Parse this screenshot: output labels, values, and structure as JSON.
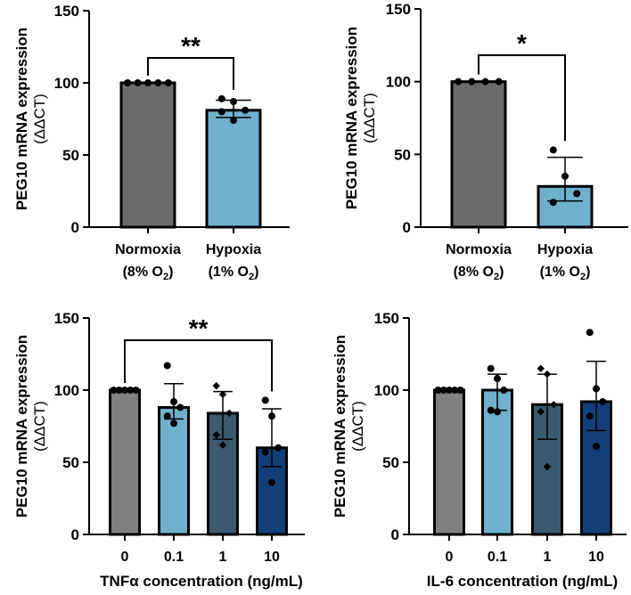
{
  "chart_data": [
    {
      "type": "bar",
      "ylabel": "PEG10 mRNA expression",
      "ylabel2": "(ΔΔCT)",
      "xlabel": "",
      "ylim": [
        0,
        150
      ],
      "yticks": [
        "0",
        "50",
        "100",
        "150"
      ],
      "categories": [
        [
          "Normoxia",
          "(8% O",
          "2",
          ")"
        ],
        [
          "Hypoxia",
          "(1% O",
          "2",
          ")"
        ]
      ],
      "means": [
        100,
        81
      ],
      "sd": [
        [
          100,
          100
        ],
        [
          76,
          88
        ]
      ],
      "points": [
        [
          100,
          100,
          100,
          100,
          100
        ],
        [
          89,
          87,
          81,
          80,
          74
        ]
      ],
      "colors": [
        "#6b6b6b",
        "#6fb0cc"
      ],
      "significance": {
        "from": 0,
        "to": 1,
        "label": "**"
      }
    },
    {
      "type": "bar",
      "ylabel": "PEG10 mRNA expression",
      "ylabel2": "(ΔΔCT)",
      "xlabel": "",
      "ylim": [
        0,
        150
      ],
      "yticks": [
        "0",
        "50",
        "100",
        "150"
      ],
      "categories": [
        [
          "Normoxia",
          "(8% O",
          "2",
          ")"
        ],
        [
          "Hypoxia",
          "(1% O",
          "2",
          ")"
        ]
      ],
      "means": [
        100,
        28
      ],
      "sd": [
        [
          100,
          100
        ],
        [
          18,
          48
        ]
      ],
      "points": [
        [
          100,
          100,
          100,
          100
        ],
        [
          53,
          35,
          23,
          17
        ]
      ],
      "colors": [
        "#6b6b6b",
        "#6fb0cc"
      ],
      "significance": {
        "from": 0,
        "to": 1,
        "label": "*"
      }
    },
    {
      "type": "bar",
      "ylabel": "PEG10 mRNA expression",
      "ylabel2": "(ΔΔCT)",
      "xlabel": "TNFα concentration (ng/mL)",
      "ylim": [
        0,
        150
      ],
      "yticks": [
        "0",
        "50",
        "100",
        "150"
      ],
      "categories": [
        [
          "0"
        ],
        [
          "0.1"
        ],
        [
          "1"
        ],
        [
          "10"
        ]
      ],
      "means": [
        100,
        88,
        84,
        60
      ],
      "sd": [
        [
          100,
          100
        ],
        [
          80,
          104.5
        ],
        [
          66,
          99
        ],
        [
          47,
          87
        ]
      ],
      "points": [
        [
          100,
          100,
          100,
          100,
          100
        ],
        [
          117,
          92,
          88,
          82,
          77
        ],
        [
          103,
          97,
          84,
          69,
          62
        ],
        [
          93,
          82,
          60,
          57,
          36
        ]
      ],
      "colors": [
        "#808080",
        "#6fb0cc",
        "#3b5a6e",
        "#123f7a"
      ],
      "significance": {
        "from": 0,
        "to": 3,
        "label": "**"
      }
    },
    {
      "type": "bar",
      "ylabel": "PEG10 mRNA expression",
      "ylabel2": "(ΔΔCT)",
      "xlabel": "IL-6 concentration (ng/mL)",
      "ylim": [
        0,
        150
      ],
      "yticks": [
        "0",
        "50",
        "100",
        "150"
      ],
      "categories": [
        [
          "0"
        ],
        [
          "0.1"
        ],
        [
          "1"
        ],
        [
          "10"
        ]
      ],
      "means": [
        100,
        100,
        90,
        92
      ],
      "sd": [
        [
          100,
          100
        ],
        [
          86,
          111
        ],
        [
          66,
          111
        ],
        [
          72,
          120
        ]
      ],
      "points": [
        [
          100,
          100,
          100,
          100,
          100
        ],
        [
          115,
          108,
          100,
          86,
          85
        ],
        [
          115,
          111,
          90,
          85,
          47
        ],
        [
          140,
          101,
          92,
          82,
          61
        ]
      ],
      "colors": [
        "#808080",
        "#6fb0cc",
        "#3b5a6e",
        "#123f7a"
      ],
      "significance": null
    }
  ]
}
